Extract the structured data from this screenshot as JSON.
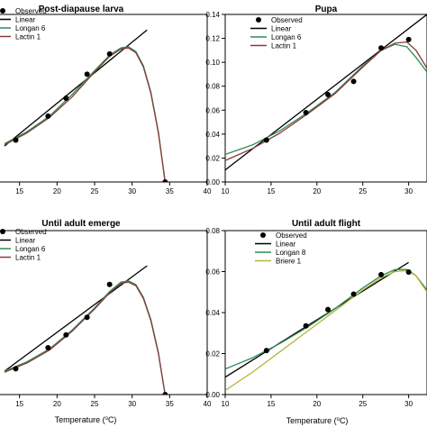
{
  "chart_data": [
    {
      "type": "line",
      "title": "Post-diapause larva",
      "xlabel": "",
      "ylabel": "",
      "xlim": [
        10,
        40
      ],
      "ylim": [
        0,
        0.14
      ],
      "xticks": [
        15,
        20,
        25,
        30,
        35,
        40
      ],
      "xtick_labels": [
        "15",
        "20",
        "25",
        "30",
        "35",
        "40"
      ],
      "yticks": [],
      "ytick_labels": [],
      "legend": {
        "placement": "top-left",
        "entries": [
          "Observed",
          "Linear",
          "Longan 6",
          "Lactin 1"
        ]
      },
      "series": [
        {
          "name": "Observed",
          "kind": "scatter",
          "color": "#000000",
          "x": [
            14.5,
            18.8,
            21.2,
            24,
            27,
            34.4
          ],
          "y": [
            0.035,
            0.055,
            0.07,
            0.09,
            0.107,
            0.0
          ]
        },
        {
          "name": "Linear",
          "kind": "line",
          "color": "#000000",
          "x": [
            13,
            32
          ],
          "y": [
            0.03,
            0.127
          ]
        },
        {
          "name": "Longan 6",
          "kind": "line",
          "color": "#2e8b57",
          "x": [
            13,
            16,
            19,
            22,
            25,
            27,
            28.5,
            29.5,
            30.5,
            31.5,
            32.5,
            33.5,
            34.4
          ],
          "y": [
            0.032,
            0.042,
            0.055,
            0.073,
            0.093,
            0.106,
            0.112,
            0.113,
            0.109,
            0.097,
            0.075,
            0.042,
            0.0
          ]
        },
        {
          "name": "Lactin 1",
          "kind": "line",
          "color": "#8b3a3a",
          "x": [
            13,
            16,
            19,
            22,
            25,
            27,
            28.5,
            29.5,
            30.5,
            31.5,
            32.5,
            33.5,
            34.4
          ],
          "y": [
            0.031,
            0.041,
            0.054,
            0.071,
            0.092,
            0.105,
            0.111,
            0.112,
            0.108,
            0.096,
            0.074,
            0.041,
            0.0
          ]
        }
      ]
    },
    {
      "type": "line",
      "title": "Pupa",
      "xlabel": "",
      "ylabel": "",
      "xlim": [
        10,
        32
      ],
      "ylim": [
        0,
        0.14
      ],
      "xticks": [
        10,
        15,
        20,
        25,
        30
      ],
      "xtick_labels": [
        "10",
        "15",
        "20",
        "25",
        "30"
      ],
      "yticks": [
        0,
        0.02,
        0.04,
        0.06,
        0.08,
        0.1,
        0.12,
        0.14
      ],
      "ytick_labels": [
        "0.00",
        "0.02",
        "0.04",
        "0.06",
        "0.08",
        "0.10",
        "0.12",
        "0.14"
      ],
      "legend": {
        "placement": "top-left",
        "entries": [
          "Observed",
          "Linear",
          "Longan 6",
          "Lactin 1"
        ]
      },
      "series": [
        {
          "name": "Observed",
          "kind": "scatter",
          "color": "#000000",
          "x": [
            14.5,
            18.8,
            21.2,
            24,
            27,
            30
          ],
          "y": [
            0.035,
            0.058,
            0.073,
            0.084,
            0.112,
            0.119
          ]
        },
        {
          "name": "Linear",
          "kind": "line",
          "color": "#000000",
          "x": [
            10,
            32
          ],
          "y": [
            0.01,
            0.14
          ]
        },
        {
          "name": "Longan 6",
          "kind": "line",
          "color": "#2e8b57",
          "x": [
            10,
            13,
            16,
            19,
            22,
            25,
            27,
            28.5,
            29.8,
            30.8,
            32
          ],
          "y": [
            0.023,
            0.031,
            0.043,
            0.058,
            0.075,
            0.097,
            0.11,
            0.115,
            0.113,
            0.104,
            0.092
          ]
        },
        {
          "name": "Lactin 1",
          "kind": "line",
          "color": "#8b3a3a",
          "x": [
            10,
            13,
            16,
            19,
            22,
            25,
            27,
            28.5,
            29.8,
            30.8,
            32
          ],
          "y": [
            0.018,
            0.028,
            0.041,
            0.057,
            0.074,
            0.096,
            0.11,
            0.116,
            0.117,
            0.11,
            0.095
          ]
        }
      ]
    },
    {
      "type": "line",
      "title": "Until adult emerge",
      "xlabel": "",
      "ylabel": "",
      "xlim": [
        10,
        40
      ],
      "ylim": [
        0,
        0.14
      ],
      "xticks": [
        15,
        20,
        25,
        30,
        35,
        40
      ],
      "xtick_labels": [
        "15",
        "20",
        "25",
        "30",
        "35",
        "40"
      ],
      "yticks": [],
      "ytick_labels": [],
      "legend": {
        "placement": "top-left",
        "entries": [
          "Observed",
          "Linear",
          "Longan 6",
          "Lactin 1"
        ]
      },
      "series": [
        {
          "name": "Observed",
          "kind": "scatter",
          "color": "#000000",
          "x": [
            14.5,
            18.8,
            21.2,
            24,
            27,
            34.4
          ],
          "y": [
            0.022,
            0.04,
            0.051,
            0.066,
            0.094,
            0.0
          ]
        },
        {
          "name": "Linear",
          "kind": "line",
          "color": "#000000",
          "x": [
            13,
            32
          ],
          "y": [
            0.02,
            0.11
          ]
        },
        {
          "name": "Longan 6",
          "kind": "line",
          "color": "#2e8b57",
          "x": [
            13,
            16,
            19,
            22,
            25,
            27,
            28.5,
            29.5,
            30.5,
            31.5,
            32.5,
            33.5,
            34.4
          ],
          "y": [
            0.02,
            0.028,
            0.039,
            0.055,
            0.074,
            0.088,
            0.096,
            0.097,
            0.094,
            0.083,
            0.064,
            0.036,
            0.0
          ]
        },
        {
          "name": "Lactin 1",
          "kind": "line",
          "color": "#8b3a3a",
          "x": [
            13,
            16,
            19,
            22,
            25,
            27,
            28.5,
            29.5,
            30.5,
            31.5,
            32.5,
            33.5,
            34.4
          ],
          "y": [
            0.019,
            0.027,
            0.038,
            0.054,
            0.073,
            0.087,
            0.095,
            0.096,
            0.093,
            0.082,
            0.063,
            0.035,
            0.0
          ]
        }
      ]
    },
    {
      "type": "line",
      "title": "Until adult flight",
      "xlabel": "Temperature (°C)",
      "ylabel": "",
      "xlim": [
        10,
        32
      ],
      "ylim": [
        0,
        0.08
      ],
      "xticks": [
        10,
        15,
        20,
        25,
        30
      ],
      "xtick_labels": [
        "10",
        "15",
        "20",
        "25",
        "30"
      ],
      "yticks": [
        0,
        0.02,
        0.04,
        0.06,
        0.08
      ],
      "ytick_labels": [
        "0.00",
        "0.02",
        "0.04",
        "0.06",
        "0.08"
      ],
      "legend": {
        "placement": "top-left",
        "entries": [
          "Observed",
          "Linear",
          "Longan 8",
          "Briere 1"
        ]
      },
      "series": [
        {
          "name": "Observed",
          "kind": "scatter",
          "color": "#000000",
          "x": [
            14.5,
            18.8,
            21.2,
            24,
            27,
            30
          ],
          "y": [
            0.0215,
            0.0335,
            0.0415,
            0.049,
            0.0585,
            0.0598
          ]
        },
        {
          "name": "Linear",
          "kind": "line",
          "color": "#000000",
          "x": [
            10,
            30
          ],
          "y": [
            0.0085,
            0.0645
          ]
        },
        {
          "name": "Longan 8",
          "kind": "line",
          "color": "#2e8b57",
          "x": [
            10,
            13,
            16,
            19,
            22,
            25,
            27,
            28.5,
            29.8,
            30.8,
            32
          ],
          "y": [
            0.0125,
            0.018,
            0.025,
            0.033,
            0.042,
            0.052,
            0.058,
            0.061,
            0.061,
            0.058,
            0.051
          ]
        },
        {
          "name": "Briere 1",
          "kind": "line",
          "color": "#b5b53a",
          "x": [
            10,
            13,
            16,
            19,
            22,
            25,
            27,
            28.5,
            29.8,
            30.8,
            32
          ],
          "y": [
            0.002,
            0.011,
            0.021,
            0.031,
            0.041,
            0.051,
            0.057,
            0.06,
            0.0605,
            0.058,
            0.05
          ]
        }
      ]
    }
  ]
}
